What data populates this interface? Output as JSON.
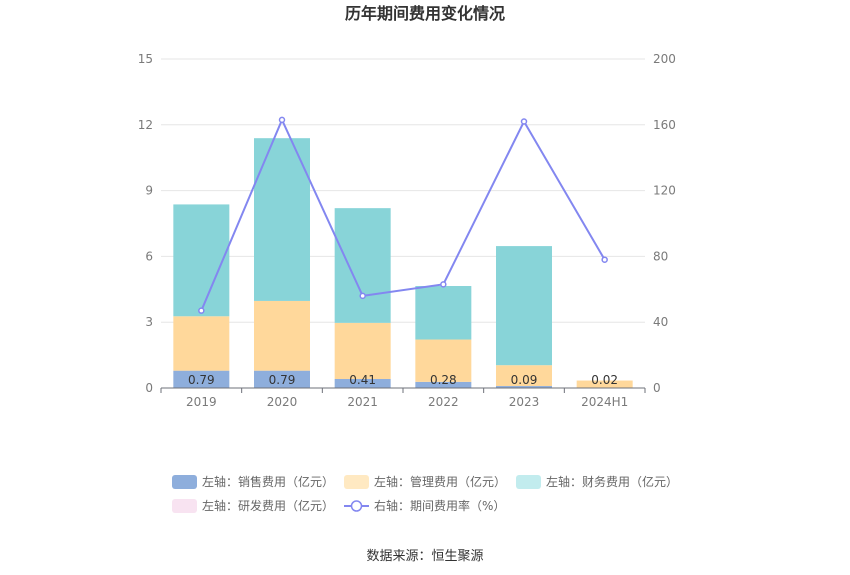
{
  "chart_data": {
    "type": "bar",
    "title": "历年期间费用变化情况",
    "categories": [
      "2019",
      "2020",
      "2021",
      "2022",
      "2023",
      "2024H1"
    ],
    "series": [
      {
        "name": "左轴：销售费用（亿元）",
        "type": "bar",
        "axis": "left",
        "color": "#8eaedc",
        "values": [
          0.79,
          0.79,
          0.41,
          0.28,
          0.09,
          0.02
        ]
      },
      {
        "name": "左轴：管理费用（亿元）",
        "type": "bar",
        "axis": "left",
        "color": "#ffd89b",
        "values": [
          2.48,
          3.18,
          2.56,
          1.93,
          0.95,
          0.32
        ]
      },
      {
        "name": "左轴：财务费用（亿元）",
        "type": "bar",
        "axis": "left",
        "color": "#88d4d8",
        "values": [
          5.1,
          7.42,
          5.23,
          2.44,
          5.43,
          0.0
        ]
      },
      {
        "name": "左轴：研发费用（亿元）",
        "type": "bar",
        "axis": "left",
        "color": "#f4d4ea",
        "values": [
          0,
          0,
          0,
          0,
          0,
          0
        ]
      },
      {
        "name": "右轴：期间费用率（%）",
        "type": "line",
        "axis": "right",
        "color": "#8387f0",
        "values": [
          47,
          163,
          56,
          63,
          162,
          78
        ]
      }
    ],
    "bar_labels": [
      "0.79",
      "0.79",
      "0.41",
      "0.28",
      "0.09",
      "0.02"
    ],
    "y_left": {
      "min": 0,
      "max": 15,
      "ticks": [
        "0",
        "3",
        "6",
        "9",
        "12",
        "15"
      ]
    },
    "y_right": {
      "min": 0,
      "max": 200,
      "ticks": [
        "0",
        "40",
        "80",
        "120",
        "160",
        "200"
      ]
    },
    "grid": true,
    "legend_position": "bottom",
    "source": "数据来源：恒生聚源"
  }
}
